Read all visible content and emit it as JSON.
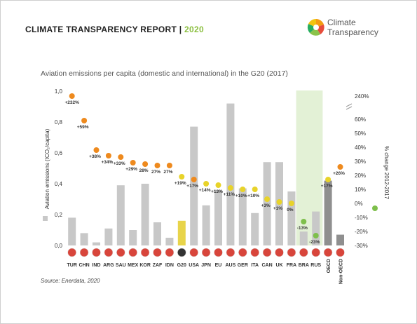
{
  "header": {
    "title": "CLIMATE TRANSPARENCY REPORT |",
    "year": "2020",
    "logo_line1": "Climate",
    "logo_line2": "Transparency"
  },
  "chart_title": "Aviation emissions per capita (domestic and international) in the G20 (2017)",
  "source": "Source: Enerdata, 2020",
  "colors": {
    "bar": "#c8c8c8",
    "g20_bar": "#e8d44a",
    "aggregate_bar": "#8f8f8f",
    "dot_orange": "#ee8a1e",
    "dot_yellow": "#e8d32a",
    "dot_green": "#7ebf4b",
    "highlight": "#e3f1d6"
  },
  "chart_data": {
    "type": "bar",
    "categories": [
      "TUR",
      "CHN",
      "IND",
      "ARG",
      "SAU",
      "MEX",
      "KOR",
      "ZAF",
      "IDN",
      "G20",
      "USA",
      "JPN",
      "EU",
      "AUS",
      "GER",
      "ITA",
      "CAN",
      "UK",
      "FRA",
      "BRA",
      "RUS",
      "OECD",
      "Non-OECD"
    ],
    "values": [
      0.18,
      0.08,
      0.02,
      0.11,
      0.39,
      0.1,
      0.4,
      0.15,
      0.05,
      0.16,
      0.77,
      0.26,
      0.36,
      0.92,
      0.37,
      0.21,
      0.54,
      0.54,
      0.35,
      0.09,
      0.22,
      0.42,
      0.07
    ],
    "ylabel": "Aviation emissions (tCO₂/capita)",
    "ylim": [
      0,
      1.0
    ],
    "yticks": [
      "0,0",
      "0,2",
      "0,4",
      "0,6",
      "0,8",
      "1,0"
    ],
    "y2label": "% change 2012-2017",
    "y2ticks": [
      "-30%",
      "-20%",
      "-10%",
      "0%",
      "10%",
      "20%",
      "30%",
      "40%",
      "50%",
      "60%",
      "240%"
    ],
    "change": [
      232,
      59,
      38,
      34,
      33,
      29,
      28,
      27,
      27,
      19,
      17,
      14,
      13,
      11,
      10,
      10,
      3,
      1,
      0,
      -13,
      -23,
      17,
      26
    ],
    "change_labels": [
      "+232%",
      "+59%",
      "+38%",
      "+34%",
      "+33%",
      "+29%",
      "28%",
      "27%",
      "27%",
      "+19%",
      "+17%",
      "+14%",
      "+13%",
      "+11%",
      "+10%",
      "+10%",
      "+3%",
      "+1%",
      "0%",
      "-13%",
      "-23%",
      "+17%",
      "+26%"
    ],
    "highlighted": [
      "BRA",
      "RUS"
    ]
  }
}
